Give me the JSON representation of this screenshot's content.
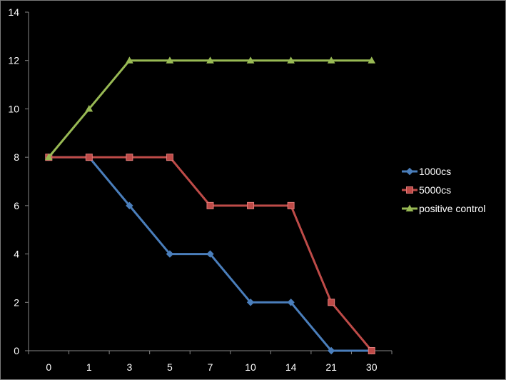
{
  "chart_data": {
    "type": "line",
    "title": "",
    "xlabel": "",
    "ylabel": "",
    "categories": [
      "0",
      "1",
      "3",
      "5",
      "7",
      "10",
      "14",
      "21",
      "30"
    ],
    "ylim": [
      0,
      14
    ],
    "yticks": [
      0,
      2,
      4,
      6,
      8,
      10,
      12,
      14
    ],
    "grid": false,
    "legend_position": "right",
    "background": "#000000",
    "series": [
      {
        "name": "1000cs",
        "values": [
          8,
          8,
          6,
          4,
          4,
          2,
          2,
          0,
          0
        ],
        "color": "#4a7ebb",
        "marker": "diamond"
      },
      {
        "name": "5000cs",
        "values": [
          8,
          8,
          8,
          8,
          6,
          6,
          6,
          2,
          0
        ],
        "color": "#be4b48",
        "marker": "square"
      },
      {
        "name": "positive control",
        "values": [
          8,
          10,
          12,
          12,
          12,
          12,
          12,
          12,
          12
        ],
        "color": "#98b954",
        "marker": "triangle"
      }
    ]
  }
}
